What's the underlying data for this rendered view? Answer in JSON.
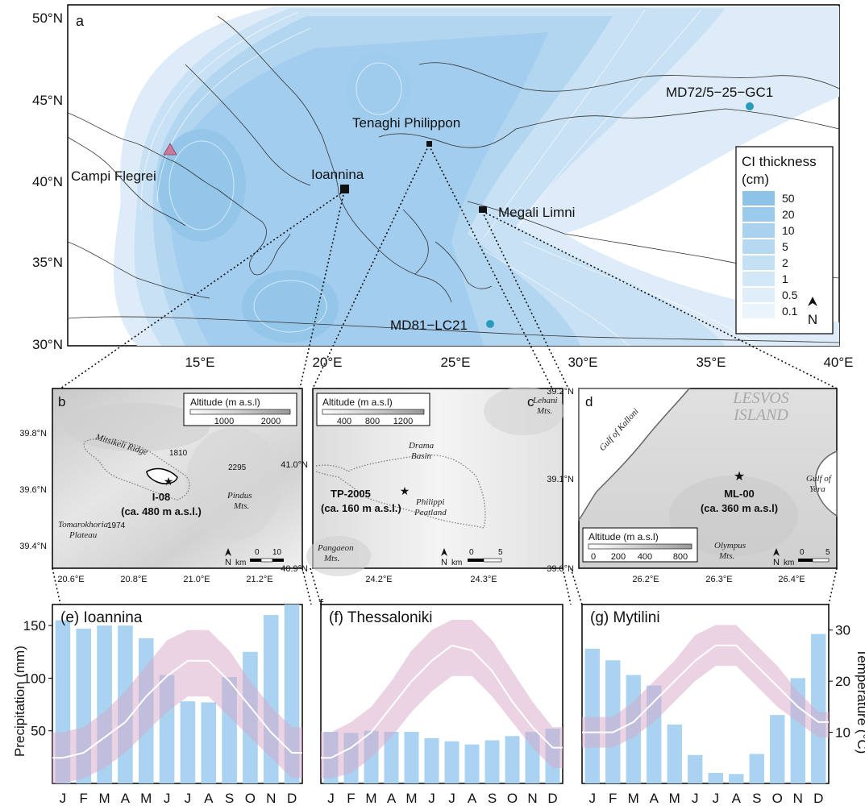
{
  "panel_a": {
    "letter": "a",
    "lat_labels": [
      "50°N",
      "45°N",
      "40°N",
      "35°N",
      "30°N"
    ],
    "lon_labels": [
      "15°E",
      "20°E",
      "25°E",
      "30°E",
      "35°E",
      "40°E"
    ],
    "sites": {
      "campi": "Campi Flegrei",
      "ioannina": "Ioannina",
      "tenaghi": "Tenaghi Philippon",
      "megali": "Megali Limni",
      "md72": "MD72/5−25−GC1",
      "md81": "MD81−LC21"
    },
    "legend": {
      "title1": "CI thickness",
      "title2": "(cm)",
      "items": [
        {
          "label": "50",
          "color": "#8ec3e8"
        },
        {
          "label": "20",
          "color": "#9bcbec"
        },
        {
          "label": "10",
          "color": "#a8d2ee"
        },
        {
          "label": "5",
          "color": "#b6d9f1"
        },
        {
          "label": "2",
          "color": "#c4e1f4"
        },
        {
          "label": "1",
          "color": "#d2e8f6"
        },
        {
          "label": "0.5",
          "color": "#dfeef9"
        },
        {
          "label": "0.1",
          "color": "#ebf4fb"
        }
      ],
      "north": "N"
    }
  },
  "panel_b": {
    "letter": "b",
    "alt_title": "Altitude (m a.s.l)",
    "alt_ticks": [
      "1000",
      "2000"
    ],
    "lat_labels": [
      "39.8°N",
      "39.6°N",
      "39.4°N"
    ],
    "lon_labels": [
      "20.6°E",
      "20.8°E",
      "21.0°E",
      "21.2°E"
    ],
    "places": {
      "ridge": "Mitsikeli Ridge",
      "peak1": "1810",
      "peak2": "2295",
      "peak3": "1974",
      "pindus1": "Pindus",
      "pindus2": "Mts.",
      "toma1": "Tomarokhoria",
      "toma2": "Plateau"
    },
    "core": "I-08",
    "core_alt": "(ca. 480 m a.s.l.)",
    "north": "N",
    "km": "km",
    "scale": [
      "0",
      "10"
    ]
  },
  "panel_c": {
    "letter": "c",
    "alt_title": "Altitude (m a.s.l)",
    "alt_ticks": [
      "400",
      "800",
      "1200"
    ],
    "lat_labels": [
      "41.0°N",
      "40.9°N"
    ],
    "lon_labels": [
      "24.2°E",
      "24.3°E"
    ],
    "places": {
      "lehani1": "Lehani",
      "lehani2": "Mts.",
      "drama1": "Drama",
      "drama2": "Basin",
      "phil1": "Philippi",
      "phil2": "Peatland",
      "pang1": "Pangaeon",
      "pang2": "Mts."
    },
    "core": "TP-2005",
    "core_alt": "(ca. 160 m a.s.l.)",
    "north": "N",
    "km": "km",
    "scale": [
      "0",
      "5"
    ]
  },
  "panel_d": {
    "letter": "d",
    "alt_title": "Altitude (m a.s.l)",
    "alt_ticks": [
      "0",
      "200",
      "400",
      "800"
    ],
    "lat_labels": [
      "39.2°N",
      "39.1°N",
      "39.0°N"
    ],
    "lon_labels": [
      "26.2°E",
      "26.3°E",
      "26.4°E"
    ],
    "places": {
      "lesvos1": "LESVOS",
      "lesvos2": "ISLAND",
      "kalloni": "Gulf of Kalloni",
      "yera1": "Gulf of",
      "yera2": "Yera",
      "olymp1": "Olympus",
      "olymp2": "Mts."
    },
    "core": "ML-00",
    "core_alt": "(ca. 360 m a.s.l)",
    "north": "N",
    "km": "km",
    "scale": [
      "0",
      "5"
    ]
  },
  "chart_data": [
    {
      "type": "bar",
      "title": "(e) Ioannina",
      "categories": [
        "J",
        "F",
        "M",
        "A",
        "M",
        "J",
        "J",
        "A",
        "S",
        "O",
        "N",
        "D"
      ],
      "ylabel": "Precipitation (mm)",
      "yticks": [
        "150",
        "100",
        "50"
      ],
      "ylim": [
        0,
        170
      ],
      "series": [
        {
          "values": [
            155,
            147,
            150,
            150,
            138,
            103,
            78,
            77,
            101,
            125,
            160,
            172
          ]
        }
      ],
      "temperature": {
        "mean": [
          5,
          6,
          9,
          12,
          17,
          21,
          24,
          24,
          20,
          15,
          10,
          6
        ],
        "min": [
          0,
          1,
          3,
          6,
          10,
          14,
          17,
          17,
          13,
          9,
          5,
          1
        ],
        "max": [
          10,
          11,
          14,
          18,
          23,
          28,
          30,
          30,
          26,
          20,
          15,
          11
        ],
        "ylim": [
          0,
          35
        ]
      }
    },
    {
      "type": "bar",
      "title": "(f) Thessaloniki",
      "categories": [
        "J",
        "F",
        "M",
        "A",
        "M",
        "J",
        "J",
        "A",
        "S",
        "O",
        "N",
        "D"
      ],
      "ylim": [
        0,
        170
      ],
      "series": [
        {
          "values": [
            49,
            48,
            50,
            49,
            49,
            43,
            40,
            37,
            41,
            45,
            49,
            52
          ]
        }
      ],
      "temperature": {
        "mean": [
          5,
          7,
          10,
          15,
          20,
          24,
          27,
          26,
          22,
          16,
          11,
          7
        ],
        "min": [
          1,
          2,
          5,
          9,
          14,
          18,
          21,
          21,
          17,
          12,
          7,
          3
        ],
        "max": [
          10,
          12,
          15,
          20,
          26,
          30,
          32,
          32,
          28,
          22,
          16,
          11
        ],
        "ylim": [
          0,
          35
        ]
      }
    },
    {
      "type": "bar",
      "title": "(g) Mytilini",
      "categories": [
        "J",
        "F",
        "M",
        "A",
        "M",
        "J",
        "J",
        "A",
        "S",
        "O",
        "N",
        "D"
      ],
      "ylabel2": "Temperature (°C)",
      "yticks2": [
        "30",
        "20",
        "10"
      ],
      "ylim": [
        0,
        170
      ],
      "series": [
        {
          "values": [
            128,
            117,
            103,
            93,
            56,
            27,
            10,
            9,
            28,
            65,
            100,
            142
          ]
        }
      ],
      "temperature": {
        "mean": [
          10,
          10,
          12,
          16,
          20,
          24,
          27,
          27,
          23,
          19,
          15,
          12
        ],
        "min": [
          7,
          7,
          9,
          12,
          16,
          20,
          23,
          23,
          19,
          15,
          12,
          9
        ],
        "max": [
          13,
          13,
          16,
          20,
          24,
          29,
          31,
          31,
          27,
          23,
          18,
          14
        ],
        "ylim": [
          0,
          35
        ]
      }
    }
  ]
}
